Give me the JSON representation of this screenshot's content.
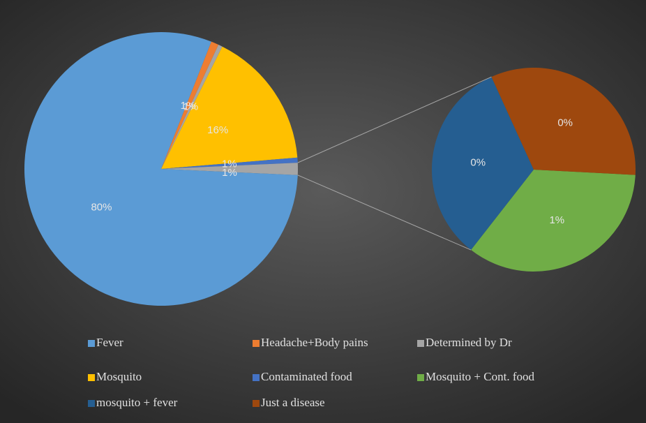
{
  "chart_data": {
    "type": "pie-of-pie",
    "categories": [
      "Fever",
      "Headache+Body pains",
      "Determined by Dr",
      "Mosquito",
      "Contaminated food",
      "Mosquito + Cont. food",
      "mosquito + fever",
      "Just a disease"
    ],
    "values": [
      80.26,
      0.9,
      0.5,
      16.3,
      0.6,
      0.5,
      0.47,
      0.47
    ],
    "value_labels": [
      "80%",
      "1%",
      "1%",
      "16%",
      "1%",
      "1%",
      "0%",
      "0%"
    ],
    "colors": [
      "#5b9bd5",
      "#ed7d31",
      "#a5a5a5",
      "#ffc000",
      "#4472c4",
      "#70ad47",
      "#255e91",
      "#9e480e"
    ],
    "secondary_count": 3,
    "other_color": "#a5a5a5",
    "other_label": "1%",
    "legend": "bottom"
  }
}
